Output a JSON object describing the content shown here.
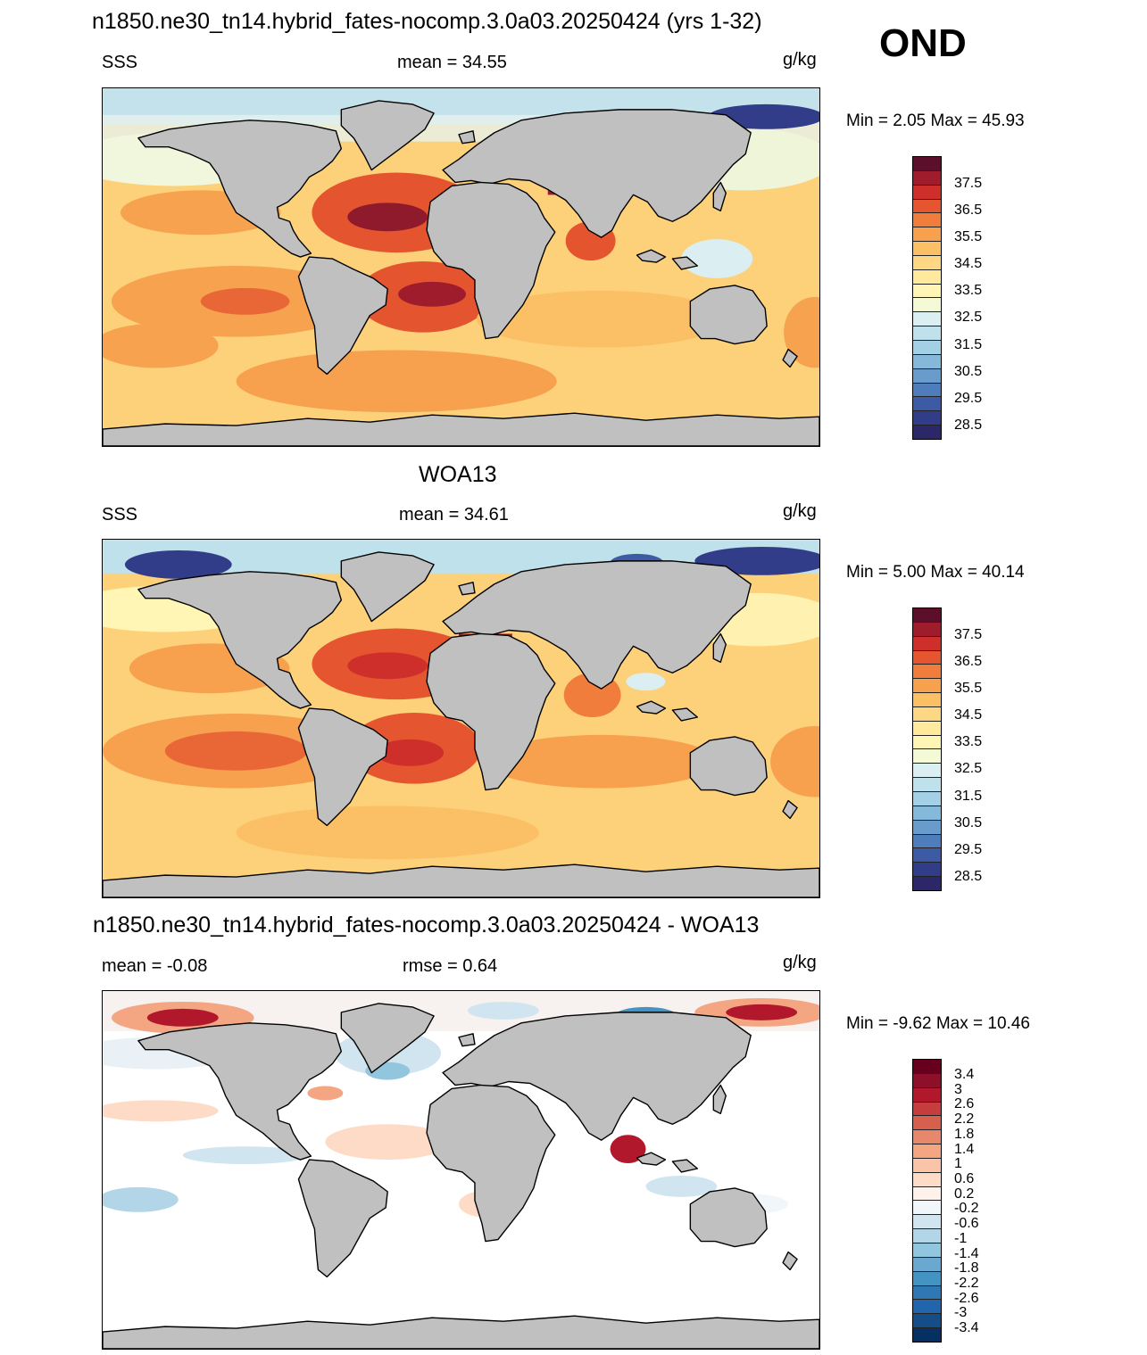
{
  "season": "OND",
  "units": "g/kg",
  "panels": [
    {
      "title": "n1850.ne30_tn14.hybrid_fates-nocomp.3.0a03.20250424 (yrs 1-32)",
      "left": "SSS",
      "center": "mean =  34.55",
      "minmax": "Min =   2.05 Max =  45.93",
      "colorbar_labels": [
        "37.5",
        "36.5",
        "35.5",
        "34.5",
        "33.5",
        "32.5",
        "31.5",
        "30.5",
        "29.5",
        "28.5"
      ]
    },
    {
      "title": "WOA13",
      "left": "SSS",
      "center": "mean =  34.61",
      "minmax": "Min =   5.00 Max =  40.14",
      "colorbar_labels": [
        "37.5",
        "36.5",
        "35.5",
        "34.5",
        "33.5",
        "32.5",
        "31.5",
        "30.5",
        "29.5",
        "28.5"
      ]
    },
    {
      "title": "n1850.ne30_tn14.hybrid_fates-nocomp.3.0a03.20250424 - WOA13",
      "left": "mean =  -0.08",
      "center": "rmse =   0.64",
      "minmax": "Min =  -9.62 Max =  10.46",
      "colorbar_labels": [
        "3.4",
        "3",
        "2.6",
        "2.2",
        "1.8",
        "1.4",
        "1",
        "0.6",
        "0.2",
        "-0.2",
        "-0.6",
        "-1",
        "-1.4",
        "-1.8",
        "-2.2",
        "-2.6",
        "-3",
        "-3.4"
      ]
    }
  ],
  "colors": {
    "land": "#c0c0c0",
    "salinity_scale": [
      "#5b0f2a",
      "#9e1c2b",
      "#cf2f2a",
      "#e5552f",
      "#f17d3c",
      "#f7a04e",
      "#fbbf66",
      "#fdd783",
      "#fee99c",
      "#fff6b6",
      "#f4f9d6",
      "#dbeff3",
      "#bfe1ec",
      "#a3d0e4",
      "#86b9d9",
      "#6a9ccb",
      "#4f7cba",
      "#3d5aa5",
      "#323d8a",
      "#2b2768"
    ],
    "difference_scale": [
      "#67001f",
      "#8e0f2a",
      "#b2182b",
      "#c53e3d",
      "#d6604d",
      "#e7876b",
      "#f4a582",
      "#f9c4a8",
      "#fddbc7",
      "#fff2ea",
      "#f0f6fa",
      "#d1e5f0",
      "#b3d5e8",
      "#92c5de",
      "#6ba8cf",
      "#4393c3",
      "#2f78b4",
      "#2166ac",
      "#144d87",
      "#053061"
    ]
  }
}
